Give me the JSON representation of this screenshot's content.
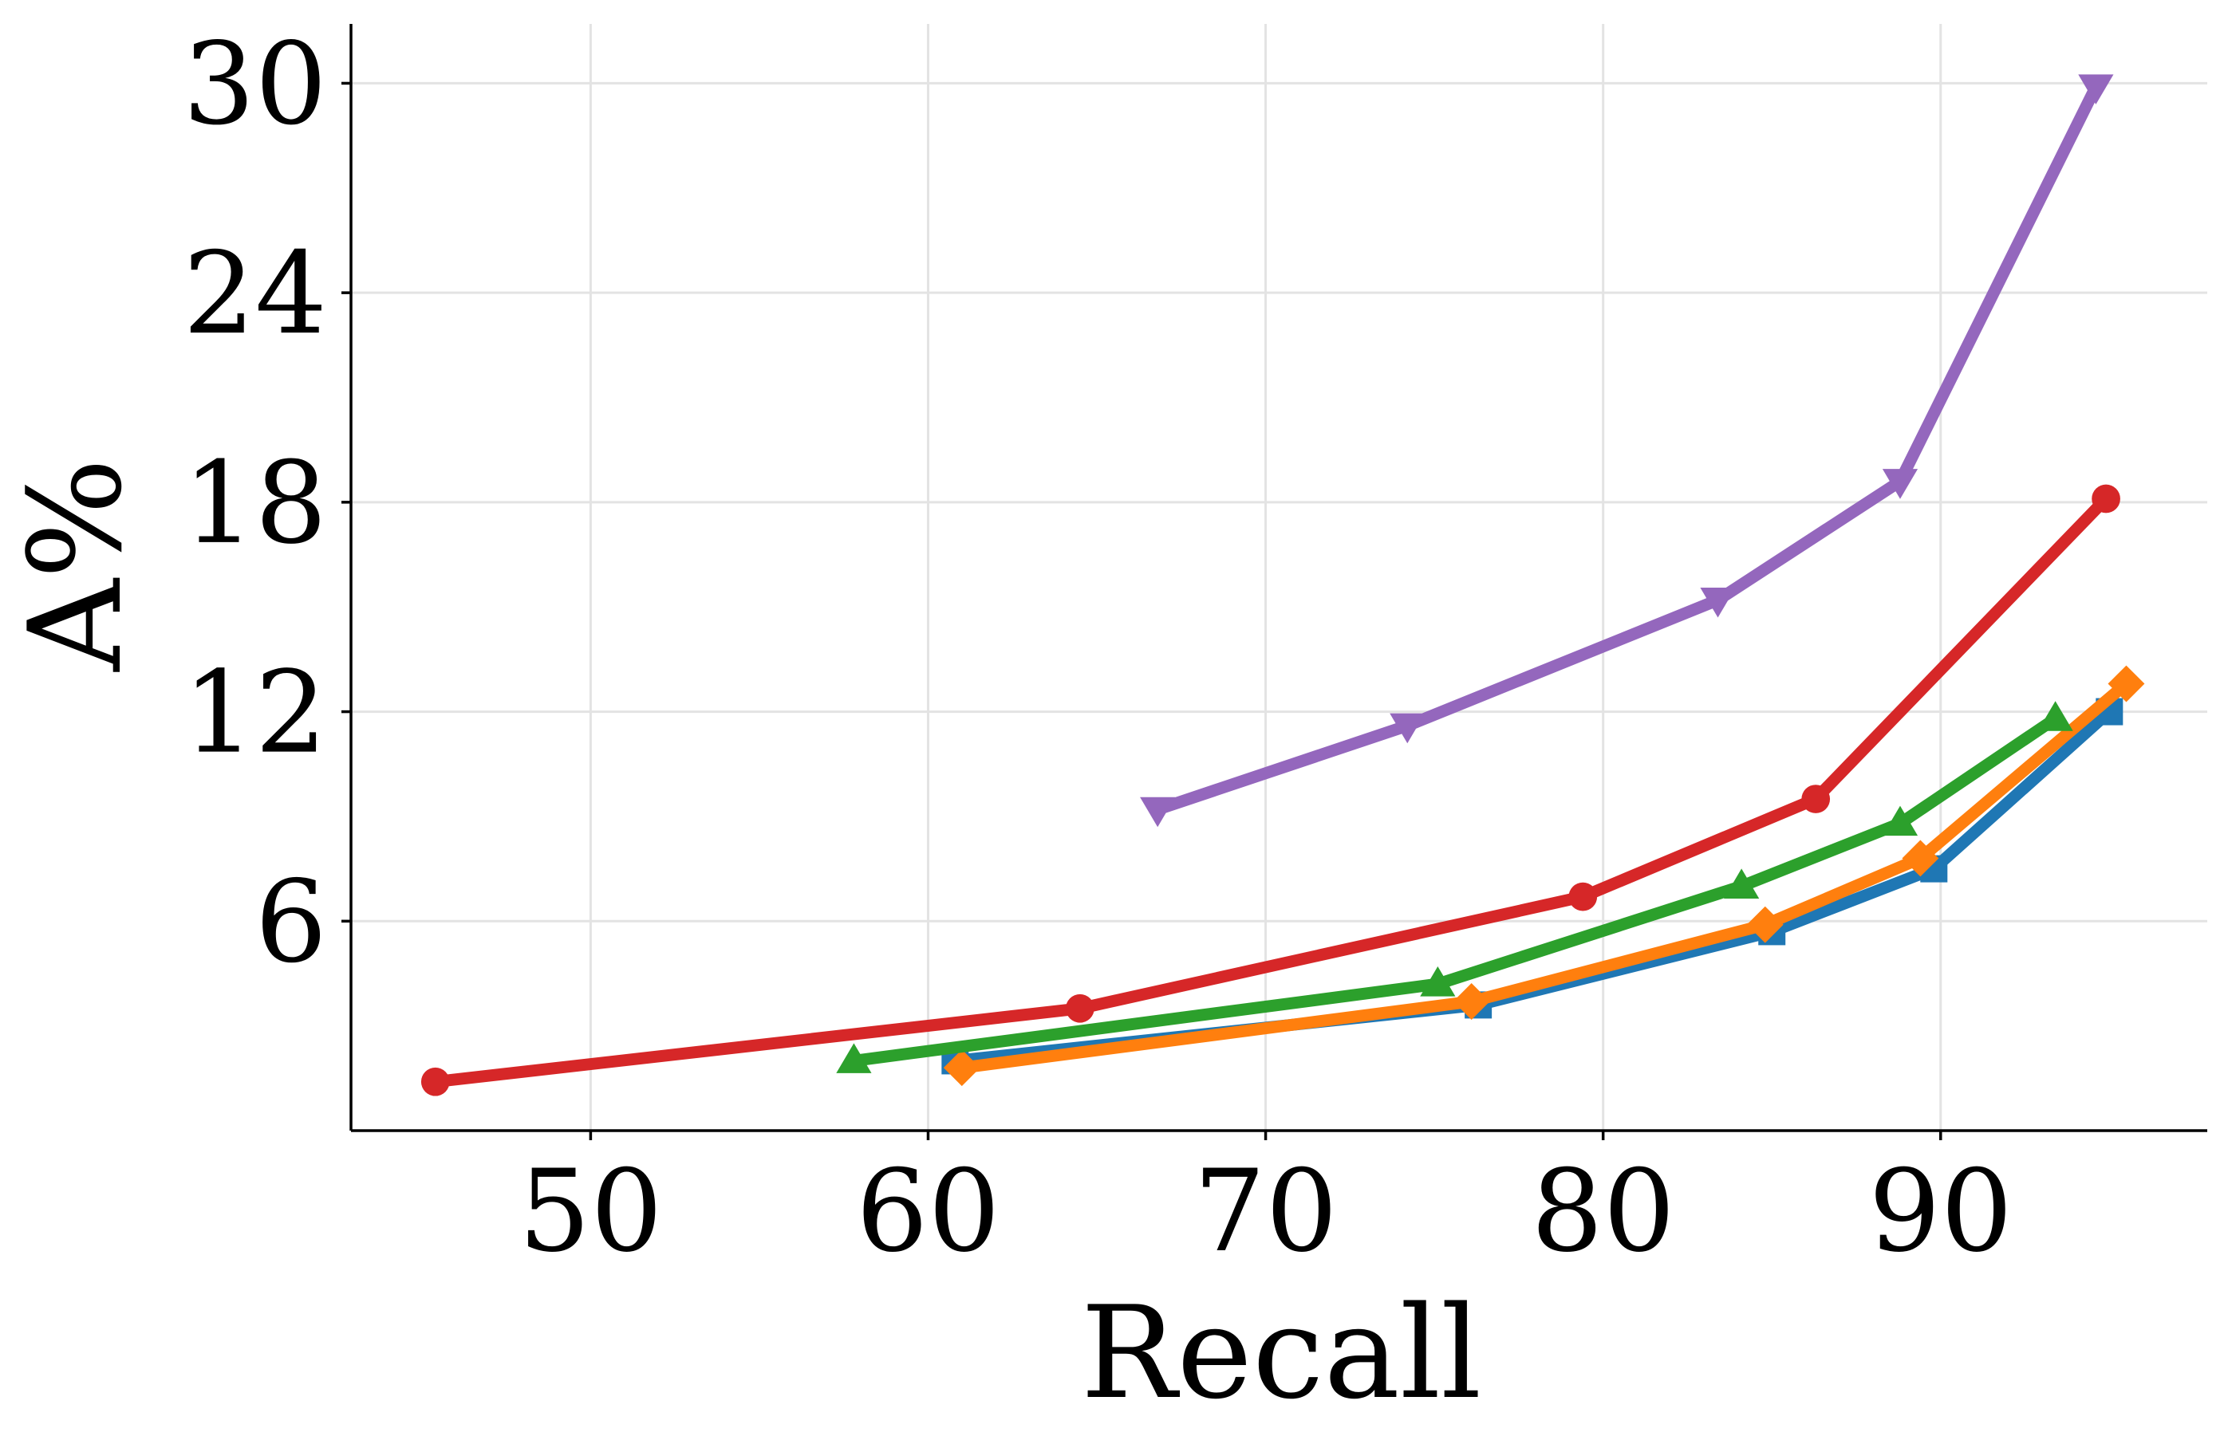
{
  "chart_data": {
    "type": "line",
    "title": "",
    "xlabel": "Recall",
    "ylabel": "A%",
    "xlim": [
      42.9,
      97.9
    ],
    "ylim": [
      0,
      31.7
    ],
    "xticks": [
      50,
      60,
      70,
      80,
      90
    ],
    "yticks": [
      6,
      12,
      18,
      24,
      30
    ],
    "grid": true,
    "legend": "none",
    "series": [
      {
        "color": "#1f77b4",
        "marker": "square",
        "x": [
          60.8,
          76.3,
          85.0,
          89.8,
          95.0
        ],
        "y": [
          2.0,
          3.6,
          5.7,
          7.5,
          12.0
        ]
      },
      {
        "color": "#ff7f0e",
        "marker": "diamond",
        "x": [
          61.0,
          76.1,
          84.8,
          89.4,
          95.5
        ],
        "y": [
          1.8,
          3.7,
          5.9,
          7.8,
          12.8
        ]
      },
      {
        "color": "#2ca02c",
        "marker": "triangle-up",
        "x": [
          57.8,
          75.1,
          84.1,
          88.8,
          93.4
        ],
        "y": [
          2.0,
          4.2,
          7.0,
          8.8,
          11.8
        ]
      },
      {
        "color": "#d62728",
        "marker": "circle",
        "x": [
          45.4,
          64.5,
          79.4,
          86.3,
          94.9
        ],
        "y": [
          1.4,
          3.5,
          6.7,
          9.5,
          18.1
        ]
      },
      {
        "color": "#9467bd",
        "marker": "triangle-down",
        "x": [
          66.8,
          74.2,
          83.4,
          88.8,
          94.6
        ],
        "y": [
          9.2,
          11.6,
          15.2,
          18.6,
          29.9
        ]
      }
    ]
  }
}
